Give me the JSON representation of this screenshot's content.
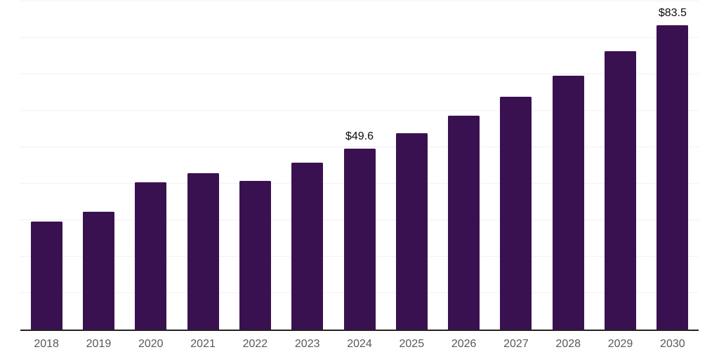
{
  "chart_data": {
    "type": "bar",
    "title": "",
    "xlabel": "",
    "ylabel": "",
    "categories": [
      "2018",
      "2019",
      "2020",
      "2021",
      "2022",
      "2023",
      "2024",
      "2025",
      "2026",
      "2027",
      "2028",
      "2029",
      "2030"
    ],
    "values": [
      29.6,
      32.4,
      40.3,
      42.9,
      40.7,
      45.7,
      49.6,
      53.9,
      58.7,
      63.9,
      69.6,
      76.3,
      83.5
    ],
    "data_labels": {
      "2024": "$49.6",
      "2030": "$83.5"
    },
    "ylim": [
      0,
      90
    ],
    "gridline_step": 10,
    "grid": "horizontal",
    "legend_position": "none",
    "y_tick_labels_visible": false,
    "colors": {
      "bar": "#3a1150",
      "gridline": "#f3f1f2",
      "axis_line": "#222222",
      "x_tick_label": "#595959",
      "data_label": "#0d0d0d",
      "background": "#ffffff"
    }
  }
}
